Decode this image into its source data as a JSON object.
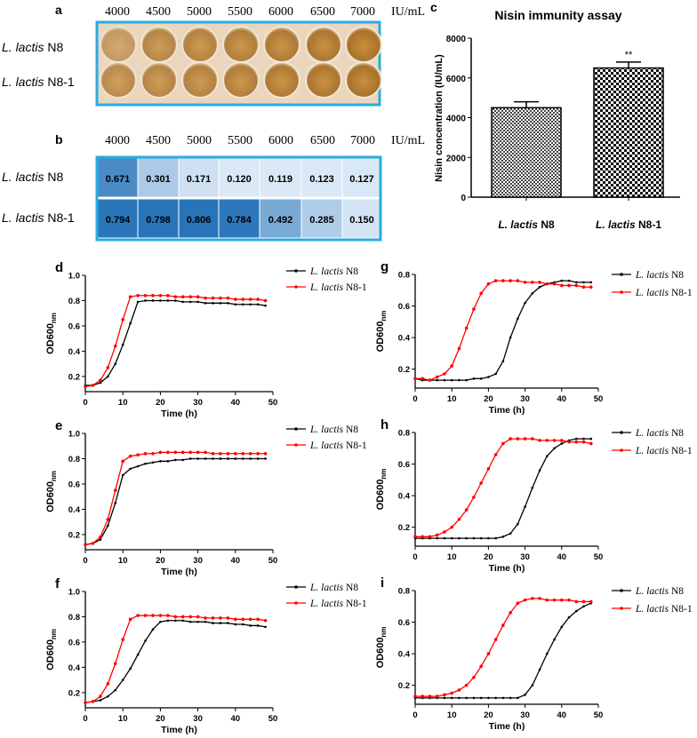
{
  "panel_labels": {
    "a": "a",
    "b": "b",
    "c": "c",
    "d": "d",
    "e": "e",
    "f": "f",
    "g": "g",
    "h": "h",
    "i": "i"
  },
  "strains": {
    "n8_prefix": "L. lactis",
    "n8_suffix": " N8",
    "n81_suffix": " N8-1"
  },
  "concentrations": [
    "4000",
    "4500",
    "5000",
    "5500",
    "6000",
    "6500",
    "7000"
  ],
  "conc_unit": "IU/mL",
  "colors": {
    "frame": "#29abe2",
    "n8": "#000000",
    "n81": "#ff0000",
    "heat_low": "#dbe9f7",
    "heat_high": "#2673b8"
  },
  "chart_data": [
    {
      "id": "b",
      "type": "heatmap",
      "rows": [
        "L. lactis N8",
        "L. lactis N8-1"
      ],
      "columns": [
        "4000",
        "4500",
        "5000",
        "5500",
        "6000",
        "6500",
        "7000"
      ],
      "values": [
        [
          "0.671",
          "0.301",
          "0.171",
          "0.120",
          "0.119",
          "0.123",
          "0.127"
        ],
        [
          "0.794",
          "0.798",
          "0.806",
          "0.784",
          "0.492",
          "0.285",
          "0.150"
        ]
      ]
    },
    {
      "id": "c",
      "type": "bar",
      "title": "Nisin immunity assay",
      "ylabel": "Nisin concentration (IU/mL)",
      "categories": [
        "L. lactis N8",
        "L. lactis N8-1"
      ],
      "values": [
        4500,
        6500
      ],
      "errors": [
        300,
        300
      ],
      "annotations": [
        "",
        "**"
      ],
      "ylim": [
        0,
        8000
      ],
      "yticks": [
        "0",
        "2000",
        "4000",
        "6000",
        "8000"
      ]
    },
    {
      "id": "d",
      "type": "line",
      "xlabel": "Time (h)",
      "ylabel": "OD600",
      "ylabel_sub": "nm",
      "xlim": [
        0,
        50
      ],
      "ylim": [
        0.08,
        1.0
      ],
      "xticks": [
        "0",
        "10",
        "20",
        "30",
        "40",
        "50"
      ],
      "yticks": [
        "0.2",
        "0.4",
        "0.6",
        "0.8",
        "1.0"
      ],
      "x_step": 2,
      "series": [
        {
          "name": "L. lactis N8",
          "values": [
            0.13,
            0.13,
            0.15,
            0.2,
            0.3,
            0.45,
            0.62,
            0.79,
            0.8,
            0.8,
            0.8,
            0.8,
            0.8,
            0.79,
            0.79,
            0.79,
            0.78,
            0.78,
            0.78,
            0.78,
            0.77,
            0.77,
            0.77,
            0.77,
            0.76
          ]
        },
        {
          "name": "L. lactis N8-1",
          "values": [
            0.12,
            0.13,
            0.17,
            0.27,
            0.44,
            0.65,
            0.83,
            0.84,
            0.84,
            0.84,
            0.84,
            0.84,
            0.83,
            0.83,
            0.83,
            0.83,
            0.82,
            0.82,
            0.82,
            0.82,
            0.81,
            0.81,
            0.81,
            0.81,
            0.8
          ]
        }
      ]
    },
    {
      "id": "e",
      "type": "line",
      "xlabel": "Time (h)",
      "ylabel": "OD600",
      "ylabel_sub": "nm",
      "xlim": [
        0,
        50
      ],
      "ylim": [
        0.08,
        1.0
      ],
      "xticks": [
        "0",
        "10",
        "20",
        "30",
        "40",
        "50"
      ],
      "yticks": [
        "0.2",
        "0.4",
        "0.6",
        "0.8",
        "1.0"
      ],
      "x_step": 2,
      "series": [
        {
          "name": "L. lactis N8",
          "values": [
            0.12,
            0.13,
            0.16,
            0.27,
            0.45,
            0.67,
            0.72,
            0.74,
            0.76,
            0.77,
            0.78,
            0.78,
            0.79,
            0.79,
            0.8,
            0.8,
            0.8,
            0.8,
            0.8,
            0.8,
            0.8,
            0.8,
            0.8,
            0.8,
            0.8
          ]
        },
        {
          "name": "L. lactis N8-1",
          "values": [
            0.12,
            0.13,
            0.18,
            0.32,
            0.55,
            0.78,
            0.82,
            0.83,
            0.84,
            0.84,
            0.85,
            0.85,
            0.85,
            0.85,
            0.85,
            0.85,
            0.85,
            0.84,
            0.84,
            0.84,
            0.84,
            0.84,
            0.84,
            0.84,
            0.84
          ]
        }
      ]
    },
    {
      "id": "f",
      "type": "line",
      "xlabel": "Time (h)",
      "ylabel": "OD600",
      "ylabel_sub": "nm",
      "xlim": [
        0,
        50
      ],
      "ylim": [
        0.08,
        1.0
      ],
      "xticks": [
        "0",
        "10",
        "20",
        "30",
        "40",
        "50"
      ],
      "yticks": [
        "0.2",
        "0.4",
        "0.6",
        "0.8",
        "1.0"
      ],
      "x_step": 2,
      "series": [
        {
          "name": "L. lactis N8",
          "values": [
            0.12,
            0.13,
            0.14,
            0.17,
            0.22,
            0.3,
            0.39,
            0.5,
            0.61,
            0.7,
            0.76,
            0.77,
            0.77,
            0.77,
            0.76,
            0.76,
            0.76,
            0.75,
            0.75,
            0.75,
            0.74,
            0.74,
            0.73,
            0.73,
            0.72
          ]
        },
        {
          "name": "L. lactis N8-1",
          "values": [
            0.12,
            0.13,
            0.17,
            0.27,
            0.43,
            0.62,
            0.78,
            0.81,
            0.81,
            0.81,
            0.81,
            0.81,
            0.8,
            0.8,
            0.8,
            0.8,
            0.79,
            0.79,
            0.79,
            0.79,
            0.78,
            0.78,
            0.78,
            0.78,
            0.77
          ]
        }
      ]
    },
    {
      "id": "g",
      "type": "line",
      "xlabel": "Time (h)",
      "ylabel": "OD600",
      "ylabel_sub": "nm",
      "xlim": [
        0,
        50
      ],
      "ylim": [
        0.08,
        0.8
      ],
      "xticks": [
        "0",
        "10",
        "20",
        "30",
        "40",
        "50"
      ],
      "yticks": [
        "0.2",
        "0.4",
        "0.6",
        "0.8"
      ],
      "x_step": 2,
      "series": [
        {
          "name": "L. lactis N8",
          "values": [
            0.14,
            0.13,
            0.13,
            0.13,
            0.13,
            0.13,
            0.13,
            0.13,
            0.14,
            0.14,
            0.15,
            0.17,
            0.25,
            0.4,
            0.52,
            0.62,
            0.68,
            0.72,
            0.74,
            0.75,
            0.76,
            0.76,
            0.75,
            0.75,
            0.75
          ]
        },
        {
          "name": "L. lactis N8-1",
          "values": [
            0.14,
            0.14,
            0.13,
            0.15,
            0.17,
            0.22,
            0.33,
            0.46,
            0.58,
            0.68,
            0.74,
            0.76,
            0.76,
            0.76,
            0.76,
            0.75,
            0.75,
            0.75,
            0.74,
            0.74,
            0.73,
            0.73,
            0.73,
            0.72,
            0.72
          ]
        }
      ]
    },
    {
      "id": "h",
      "type": "line",
      "xlabel": "Time (h)",
      "ylabel": "OD600",
      "ylabel_sub": "nm",
      "xlim": [
        0,
        50
      ],
      "ylim": [
        0.08,
        0.8
      ],
      "xticks": [
        "0",
        "10",
        "20",
        "30",
        "40",
        "50"
      ],
      "yticks": [
        "0.2",
        "0.4",
        "0.6",
        "0.8"
      ],
      "x_step": 2,
      "series": [
        {
          "name": "L. lactis N8",
          "values": [
            0.13,
            0.13,
            0.13,
            0.13,
            0.13,
            0.13,
            0.13,
            0.13,
            0.13,
            0.13,
            0.13,
            0.13,
            0.14,
            0.16,
            0.22,
            0.33,
            0.45,
            0.56,
            0.65,
            0.7,
            0.73,
            0.75,
            0.76,
            0.76,
            0.76
          ]
        },
        {
          "name": "L. lactis N8-1",
          "values": [
            0.14,
            0.14,
            0.14,
            0.15,
            0.17,
            0.2,
            0.25,
            0.31,
            0.39,
            0.48,
            0.57,
            0.66,
            0.73,
            0.76,
            0.76,
            0.76,
            0.76,
            0.75,
            0.75,
            0.75,
            0.75,
            0.74,
            0.74,
            0.74,
            0.73
          ]
        }
      ]
    },
    {
      "id": "i",
      "type": "line",
      "xlabel": "Time (h)",
      "ylabel": "OD600",
      "ylabel_sub": "nm",
      "xlim": [
        0,
        50
      ],
      "ylim": [
        0.08,
        0.8
      ],
      "xticks": [
        "0",
        "10",
        "20",
        "30",
        "40",
        "50"
      ],
      "yticks": [
        "0.2",
        "0.4",
        "0.6",
        "0.8"
      ],
      "x_step": 2,
      "series": [
        {
          "name": "L. lactis N8",
          "values": [
            0.12,
            0.12,
            0.12,
            0.12,
            0.12,
            0.12,
            0.12,
            0.12,
            0.12,
            0.12,
            0.12,
            0.12,
            0.12,
            0.12,
            0.12,
            0.14,
            0.2,
            0.3,
            0.4,
            0.49,
            0.57,
            0.63,
            0.67,
            0.7,
            0.72
          ]
        },
        {
          "name": "L. lactis N8-1",
          "values": [
            0.13,
            0.13,
            0.13,
            0.13,
            0.14,
            0.15,
            0.17,
            0.2,
            0.25,
            0.32,
            0.4,
            0.49,
            0.58,
            0.66,
            0.72,
            0.74,
            0.75,
            0.75,
            0.74,
            0.74,
            0.74,
            0.74,
            0.73,
            0.73,
            0.73
          ]
        }
      ]
    }
  ]
}
